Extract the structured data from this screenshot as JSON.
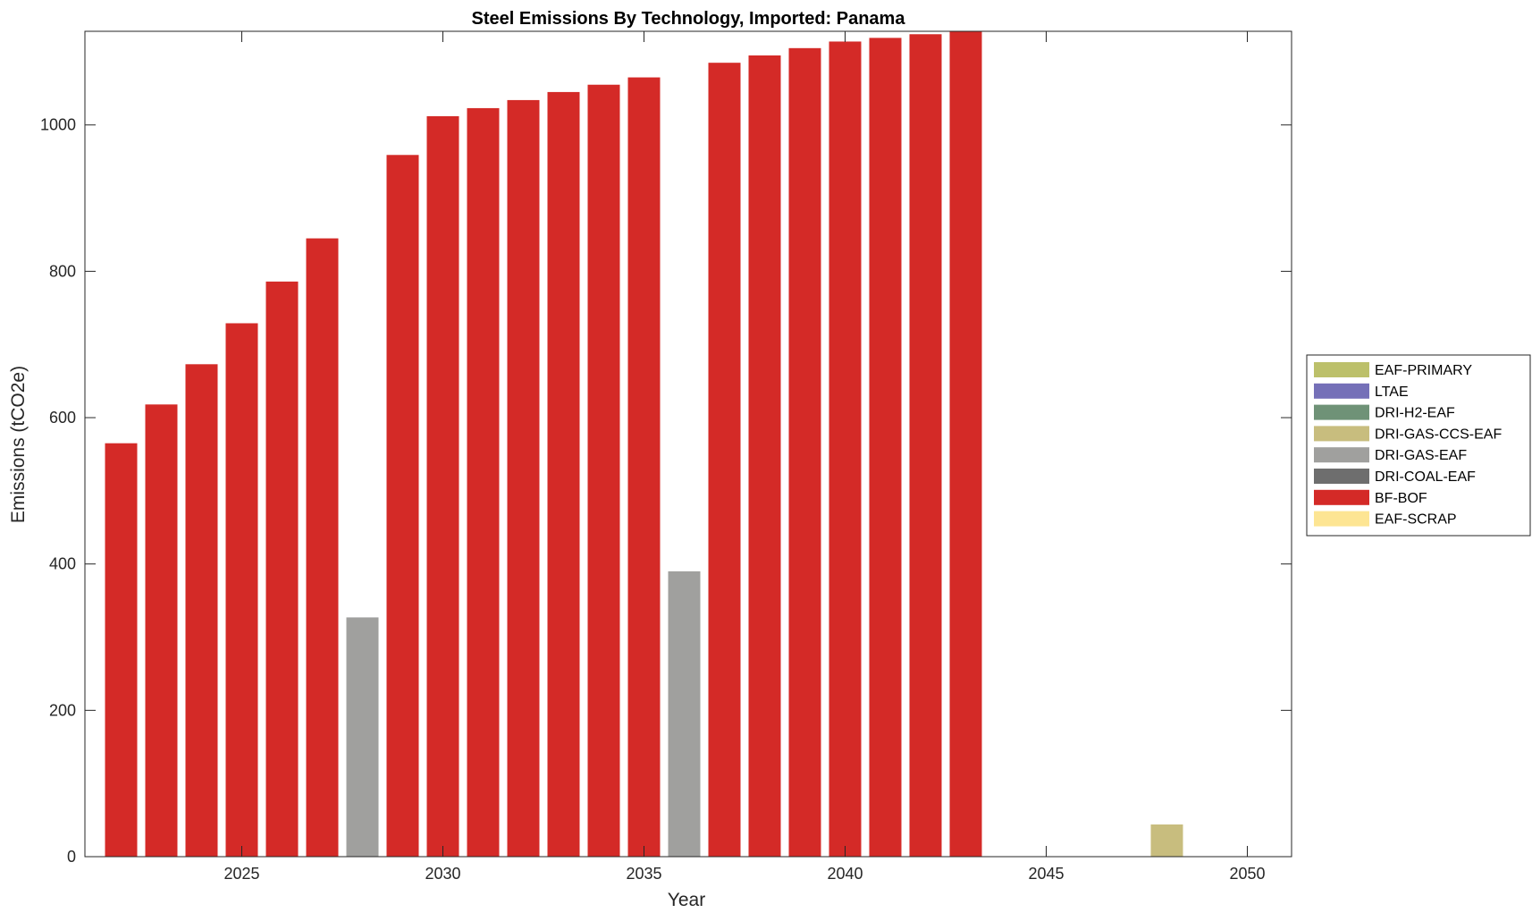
{
  "chart_data": {
    "type": "bar",
    "stacked": true,
    "title": "Steel Emissions By Technology, Imported: Panama",
    "xlabel": "Year",
    "ylabel": "Emissions (tCO2e)",
    "xlim": [
      2021.1,
      2051.1
    ],
    "ylim": [
      0,
      1128
    ],
    "xticks": [
      2025,
      2030,
      2035,
      2040,
      2045,
      2050
    ],
    "yticks": [
      0,
      200,
      400,
      600,
      800,
      1000
    ],
    "grid": false,
    "legend_position": "outside-right",
    "x": [
      2022,
      2023,
      2024,
      2025,
      2026,
      2027,
      2028,
      2029,
      2030,
      2031,
      2032,
      2033,
      2034,
      2035,
      2036,
      2037,
      2038,
      2039,
      2040,
      2041,
      2042,
      2043,
      2044,
      2045,
      2046,
      2047,
      2048,
      2049,
      2050
    ],
    "series": [
      {
        "name": "EAF-PRIMARY",
        "color": "#bcc06a",
        "values": [
          0,
          0,
          0,
          0,
          0,
          0,
          0,
          0,
          0,
          0,
          0,
          0,
          0,
          0,
          0,
          0,
          0,
          0,
          0,
          0,
          0,
          0,
          0,
          0,
          0,
          0,
          0,
          0,
          0
        ]
      },
      {
        "name": "LTAE",
        "color": "#7570b8",
        "values": [
          0,
          0,
          0,
          0,
          0,
          0,
          0,
          0,
          0,
          0,
          0,
          0,
          0,
          0,
          0,
          0,
          0,
          0,
          0,
          0,
          0,
          0,
          0,
          0,
          0,
          0,
          0,
          0,
          0
        ]
      },
      {
        "name": "DRI-H2-EAF",
        "color": "#6f9277",
        "values": [
          0,
          0,
          0,
          0,
          0,
          0,
          0,
          0,
          0,
          0,
          0,
          0,
          0,
          0,
          0,
          0,
          0,
          0,
          0,
          0,
          0,
          0,
          0,
          0,
          0,
          0,
          0,
          0,
          0
        ]
      },
      {
        "name": "DRI-GAS-CCS-EAF",
        "color": "#c8bd7e",
        "values": [
          0,
          0,
          0,
          0,
          0,
          0,
          0,
          0,
          0,
          0,
          0,
          0,
          0,
          0,
          0,
          0,
          0,
          0,
          0,
          0,
          0,
          0,
          0,
          0,
          0,
          0,
          44,
          0,
          0
        ]
      },
      {
        "name": "DRI-GAS-EAF",
        "color": "#a0a09e",
        "values": [
          0,
          0,
          0,
          0,
          0,
          0,
          327,
          0,
          0,
          0,
          0,
          0,
          0,
          0,
          390,
          0,
          0,
          0,
          0,
          0,
          0,
          0,
          0,
          0,
          0,
          0,
          0,
          0,
          0
        ]
      },
      {
        "name": "DRI-COAL-EAF",
        "color": "#6e6e6e",
        "values": [
          0,
          0,
          0,
          0,
          0,
          0,
          0,
          0,
          0,
          0,
          0,
          0,
          0,
          0,
          0,
          0,
          0,
          0,
          0,
          0,
          0,
          0,
          0,
          0,
          0,
          0,
          0,
          0,
          0
        ]
      },
      {
        "name": "BF-BOF",
        "color": "#d42a27",
        "values": [
          565,
          618,
          673,
          729,
          786,
          845,
          0,
          959,
          1012,
          1023,
          1034,
          1045,
          1055,
          1065,
          0,
          1085,
          1095,
          1105,
          1114,
          1119,
          1124,
          1128,
          0,
          0,
          0,
          0,
          0,
          0,
          0
        ]
      },
      {
        "name": "EAF-SCRAP",
        "color": "#fde593",
        "values": [
          0,
          0,
          0,
          0,
          0,
          0,
          0,
          0,
          0,
          0,
          0,
          0,
          0,
          0,
          0,
          0,
          0,
          0,
          0,
          0,
          0,
          0,
          0,
          0,
          0,
          0,
          0,
          0,
          0
        ]
      }
    ]
  }
}
